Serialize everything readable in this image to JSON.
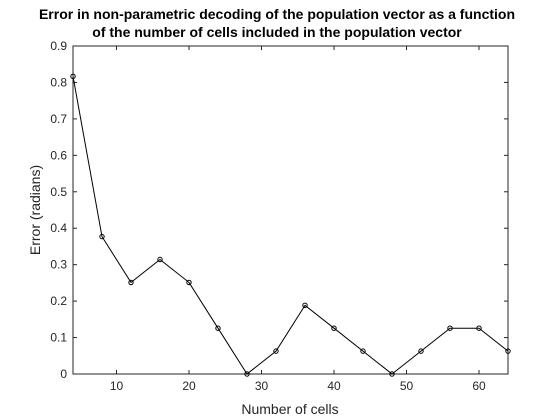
{
  "chart_data": {
    "type": "line",
    "title": [
      "Error in non-parametric decoding of the population vector as a function",
      "of the number of cells included in the population vector"
    ],
    "xlabel": "Number of cells",
    "ylabel": "Error (radians)",
    "xlim": [
      4,
      64
    ],
    "ylim": [
      0,
      0.9
    ],
    "xticks": [
      10,
      20,
      30,
      40,
      50,
      60
    ],
    "yticks": [
      0,
      0.1,
      0.2,
      0.3,
      0.4,
      0.5,
      0.6,
      0.7,
      0.8,
      0.9
    ],
    "grid": false,
    "legend": "none",
    "series": [
      {
        "x": [
          4,
          8,
          12,
          16,
          20,
          24,
          28,
          32,
          36,
          40,
          44,
          48,
          52,
          56,
          60,
          64
        ],
        "y": [
          0.8168,
          0.377,
          0.2513,
          0.3142,
          0.2513,
          0.1257,
          0.0,
          0.0628,
          0.1885,
          0.1257,
          0.0628,
          0.0,
          0.0628,
          0.1257,
          0.1257,
          0.0628
        ],
        "color": "#000000",
        "marker": "circle"
      }
    ]
  }
}
